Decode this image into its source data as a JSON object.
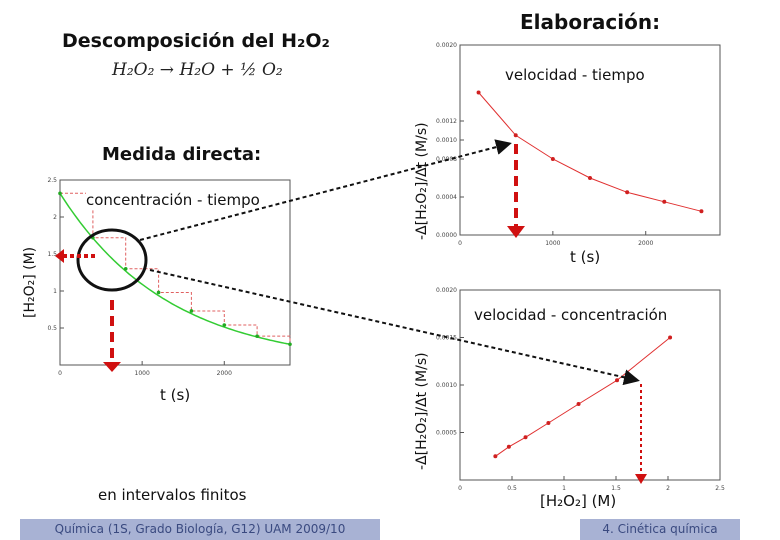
{
  "slide": {
    "title_left": "Descomposición del H₂O₂",
    "equation": "H₂O₂ → H₂O + ½ O₂",
    "title_right": "Elaboración:",
    "medida": "Medida directa:",
    "intervalos": "en intervalos finitos",
    "footer_left": "Química (1S, Grado Biología, G12) UAM 2009/10",
    "footer_right": "4. Cinética química"
  },
  "chart_data": [
    {
      "type": "line",
      "title": "concentración - tiempo",
      "xlabel": "t (s)",
      "ylabel": "[H₂O₂] (M)",
      "xlim": [
        0,
        2800
      ],
      "ylim": [
        0,
        2.5
      ],
      "xticks": [
        "0",
        "1000",
        "2000"
      ],
      "yticks": [
        "0.5",
        "1",
        "1.5",
        "2",
        "2.5"
      ],
      "series": [
        {
          "x": [
            0,
            400,
            800,
            1200,
            1600,
            2000,
            2400,
            2800
          ],
          "y": [
            2.32,
            1.72,
            1.3,
            0.98,
            0.73,
            0.54,
            0.39,
            0.28
          ]
        }
      ]
    },
    {
      "type": "line",
      "title": "velocidad - tiempo",
      "xlabel": "t (s)",
      "ylabel": "-Δ[H₂O₂]/Δt (M/s)",
      "xlim": [
        0,
        2800
      ],
      "ylim": [
        0,
        0.002
      ],
      "xticks": [
        "0",
        "1000",
        "2000"
      ],
      "yticks": [
        "0.0000",
        "0.0004",
        "0.0008",
        "0.0010",
        "0.0012",
        "0.0020"
      ],
      "series": [
        {
          "x": [
            200,
            600,
            1000,
            1400,
            1800,
            2200,
            2600
          ],
          "y": [
            0.0015,
            0.00105,
            0.0008,
            0.0006,
            0.00045,
            0.00035,
            0.00025
          ]
        }
      ]
    },
    {
      "type": "line",
      "title": "velocidad - concentración",
      "xlabel": "[H₂O₂] (M)",
      "ylabel": "-Δ[H₂O₂]/Δt (M/s)",
      "xlim": [
        0,
        2.5
      ],
      "ylim": [
        0,
        0.002
      ],
      "xticks": [
        "0",
        "0.5",
        "1",
        "1.5",
        "2",
        "2.5"
      ],
      "yticks": [
        "0.0005",
        "0.0010",
        "0.0015",
        "0.0020"
      ],
      "series": [
        {
          "x": [
            0.34,
            0.47,
            0.63,
            0.85,
            1.14,
            1.51,
            2.02
          ],
          "y": [
            0.00025,
            0.00035,
            0.00045,
            0.0006,
            0.0008,
            0.00105,
            0.0015
          ]
        }
      ]
    }
  ]
}
